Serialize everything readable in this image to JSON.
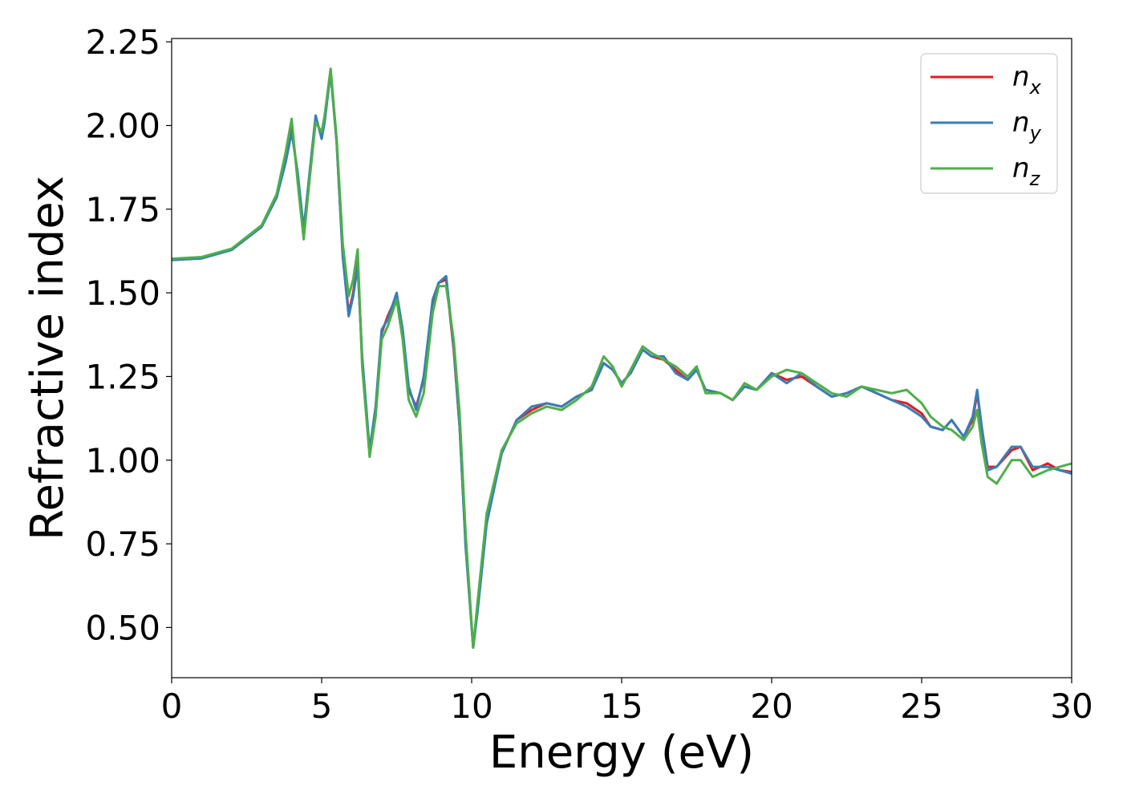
{
  "chart_data": {
    "type": "line",
    "title": "",
    "xlabel": "Energy (eV)",
    "ylabel": "Refractive index",
    "xlim": [
      0,
      30
    ],
    "ylim": [
      0.35,
      2.26
    ],
    "xticks": [
      0,
      5,
      10,
      15,
      20,
      25,
      30
    ],
    "yticks": [
      0.5,
      0.75,
      1.0,
      1.25,
      1.5,
      1.75,
      2.0,
      2.25
    ],
    "xtick_labels": [
      "0",
      "5",
      "10",
      "15",
      "20",
      "25",
      "30"
    ],
    "ytick_labels": [
      "0.50",
      "0.75",
      "1.00",
      "1.25",
      "1.50",
      "1.75",
      "2.00",
      "2.25"
    ],
    "grid": false,
    "legend_position": "top-right",
    "series": [
      {
        "name": "n",
        "subscript": "x",
        "color": "#e41a1c",
        "points": [
          [
            0,
            1.6
          ],
          [
            1,
            1.605
          ],
          [
            2,
            1.63
          ],
          [
            3,
            1.7
          ],
          [
            3.5,
            1.79
          ],
          [
            3.8,
            1.9
          ],
          [
            4.0,
            1.99
          ],
          [
            4.2,
            1.85
          ],
          [
            4.4,
            1.68
          ],
          [
            4.6,
            1.85
          ],
          [
            4.8,
            2.02
          ],
          [
            5.0,
            1.97
          ],
          [
            5.1,
            2.02
          ],
          [
            5.3,
            2.16
          ],
          [
            5.5,
            1.95
          ],
          [
            5.7,
            1.62
          ],
          [
            5.9,
            1.44
          ],
          [
            6.05,
            1.5
          ],
          [
            6.2,
            1.59
          ],
          [
            6.35,
            1.3
          ],
          [
            6.6,
            1.02
          ],
          [
            6.8,
            1.15
          ],
          [
            7.0,
            1.38
          ],
          [
            7.2,
            1.43
          ],
          [
            7.5,
            1.49
          ],
          [
            7.7,
            1.38
          ],
          [
            7.9,
            1.21
          ],
          [
            8.15,
            1.16
          ],
          [
            8.4,
            1.24
          ],
          [
            8.7,
            1.47
          ],
          [
            8.9,
            1.53
          ],
          [
            9.15,
            1.54
          ],
          [
            9.4,
            1.33
          ],
          [
            9.6,
            1.1
          ],
          [
            9.8,
            0.75
          ],
          [
            10.05,
            0.44
          ],
          [
            10.2,
            0.56
          ],
          [
            10.5,
            0.82
          ],
          [
            11,
            1.02
          ],
          [
            11.5,
            1.12
          ],
          [
            12,
            1.15
          ],
          [
            12.5,
            1.17
          ],
          [
            13,
            1.16
          ],
          [
            13.5,
            1.19
          ],
          [
            14,
            1.21
          ],
          [
            14.4,
            1.29
          ],
          [
            14.7,
            1.27
          ],
          [
            15,
            1.23
          ],
          [
            15.3,
            1.26
          ],
          [
            15.7,
            1.33
          ],
          [
            16,
            1.31
          ],
          [
            16.4,
            1.3
          ],
          [
            16.8,
            1.27
          ],
          [
            17.2,
            1.24
          ],
          [
            17.5,
            1.27
          ],
          [
            17.8,
            1.21
          ],
          [
            18.3,
            1.2
          ],
          [
            18.7,
            1.18
          ],
          [
            19.1,
            1.22
          ],
          [
            19.5,
            1.21
          ],
          [
            20,
            1.26
          ],
          [
            20.5,
            1.24
          ],
          [
            21,
            1.25
          ],
          [
            21.5,
            1.22
          ],
          [
            22,
            1.19
          ],
          [
            22.5,
            1.2
          ],
          [
            23,
            1.22
          ],
          [
            23.5,
            1.2
          ],
          [
            24,
            1.18
          ],
          [
            24.5,
            1.17
          ],
          [
            25,
            1.14
          ],
          [
            25.3,
            1.1
          ],
          [
            25.7,
            1.09
          ],
          [
            26,
            1.12
          ],
          [
            26.4,
            1.07
          ],
          [
            26.7,
            1.12
          ],
          [
            26.85,
            1.2
          ],
          [
            27,
            1.1
          ],
          [
            27.2,
            0.98
          ],
          [
            27.5,
            0.98
          ],
          [
            28,
            1.03
          ],
          [
            28.3,
            1.04
          ],
          [
            28.7,
            0.97
          ],
          [
            29.2,
            0.99
          ],
          [
            29.6,
            0.97
          ],
          [
            30,
            0.965
          ]
        ]
      },
      {
        "name": "n",
        "subscript": "y",
        "color": "#377eb8",
        "points": [
          [
            0,
            1.598
          ],
          [
            1,
            1.603
          ],
          [
            2,
            1.628
          ],
          [
            3,
            1.697
          ],
          [
            3.5,
            1.785
          ],
          [
            3.8,
            1.89
          ],
          [
            4.0,
            1.98
          ],
          [
            4.2,
            1.86
          ],
          [
            4.4,
            1.69
          ],
          [
            4.6,
            1.86
          ],
          [
            4.8,
            2.03
          ],
          [
            5.0,
            1.96
          ],
          [
            5.1,
            2.01
          ],
          [
            5.3,
            2.16
          ],
          [
            5.5,
            1.95
          ],
          [
            5.7,
            1.61
          ],
          [
            5.9,
            1.43
          ],
          [
            6.05,
            1.49
          ],
          [
            6.2,
            1.58
          ],
          [
            6.35,
            1.31
          ],
          [
            6.6,
            1.03
          ],
          [
            6.8,
            1.16
          ],
          [
            7.0,
            1.39
          ],
          [
            7.2,
            1.42
          ],
          [
            7.5,
            1.5
          ],
          [
            7.7,
            1.39
          ],
          [
            7.9,
            1.22
          ],
          [
            8.15,
            1.15
          ],
          [
            8.4,
            1.25
          ],
          [
            8.7,
            1.48
          ],
          [
            8.9,
            1.53
          ],
          [
            9.15,
            1.55
          ],
          [
            9.4,
            1.34
          ],
          [
            9.6,
            1.1
          ],
          [
            9.8,
            0.74
          ],
          [
            10.05,
            0.44
          ],
          [
            10.2,
            0.55
          ],
          [
            10.5,
            0.81
          ],
          [
            11,
            1.02
          ],
          [
            11.5,
            1.12
          ],
          [
            12,
            1.16
          ],
          [
            12.5,
            1.17
          ],
          [
            13,
            1.16
          ],
          [
            13.5,
            1.19
          ],
          [
            14,
            1.21
          ],
          [
            14.4,
            1.29
          ],
          [
            14.7,
            1.27
          ],
          [
            15,
            1.23
          ],
          [
            15.3,
            1.26
          ],
          [
            15.7,
            1.33
          ],
          [
            16,
            1.31
          ],
          [
            16.4,
            1.31
          ],
          [
            16.8,
            1.26
          ],
          [
            17.2,
            1.24
          ],
          [
            17.5,
            1.27
          ],
          [
            17.8,
            1.21
          ],
          [
            18.3,
            1.2
          ],
          [
            18.7,
            1.18
          ],
          [
            19.1,
            1.22
          ],
          [
            19.5,
            1.21
          ],
          [
            20,
            1.26
          ],
          [
            20.5,
            1.23
          ],
          [
            21,
            1.26
          ],
          [
            21.5,
            1.22
          ],
          [
            22,
            1.19
          ],
          [
            22.5,
            1.2
          ],
          [
            23,
            1.22
          ],
          [
            23.5,
            1.2
          ],
          [
            24,
            1.18
          ],
          [
            24.5,
            1.16
          ],
          [
            25,
            1.13
          ],
          [
            25.3,
            1.1
          ],
          [
            25.7,
            1.09
          ],
          [
            26,
            1.12
          ],
          [
            26.4,
            1.07
          ],
          [
            26.7,
            1.13
          ],
          [
            26.85,
            1.21
          ],
          [
            27,
            1.1
          ],
          [
            27.2,
            0.97
          ],
          [
            27.5,
            0.98
          ],
          [
            28,
            1.04
          ],
          [
            28.3,
            1.04
          ],
          [
            28.7,
            0.98
          ],
          [
            29.2,
            0.98
          ],
          [
            29.6,
            0.97
          ],
          [
            30,
            0.96
          ]
        ]
      },
      {
        "name": "n",
        "subscript": "z",
        "color": "#4daf4a",
        "points": [
          [
            0,
            1.602
          ],
          [
            1,
            1.607
          ],
          [
            2,
            1.632
          ],
          [
            3,
            1.702
          ],
          [
            3.5,
            1.795
          ],
          [
            3.8,
            1.92
          ],
          [
            4.0,
            2.02
          ],
          [
            4.2,
            1.83
          ],
          [
            4.4,
            1.66
          ],
          [
            4.6,
            1.84
          ],
          [
            4.8,
            2.01
          ],
          [
            5.0,
            1.98
          ],
          [
            5.1,
            2.03
          ],
          [
            5.3,
            2.17
          ],
          [
            5.5,
            1.96
          ],
          [
            5.7,
            1.65
          ],
          [
            5.9,
            1.49
          ],
          [
            6.05,
            1.54
          ],
          [
            6.2,
            1.63
          ],
          [
            6.35,
            1.28
          ],
          [
            6.6,
            1.01
          ],
          [
            6.8,
            1.13
          ],
          [
            7.0,
            1.36
          ],
          [
            7.2,
            1.4
          ],
          [
            7.5,
            1.48
          ],
          [
            7.7,
            1.36
          ],
          [
            7.9,
            1.18
          ],
          [
            8.15,
            1.13
          ],
          [
            8.4,
            1.2
          ],
          [
            8.7,
            1.44
          ],
          [
            8.9,
            1.52
          ],
          [
            9.15,
            1.52
          ],
          [
            9.4,
            1.36
          ],
          [
            9.6,
            1.14
          ],
          [
            9.8,
            0.78
          ],
          [
            10.05,
            0.44
          ],
          [
            10.2,
            0.58
          ],
          [
            10.5,
            0.84
          ],
          [
            11,
            1.03
          ],
          [
            11.5,
            1.11
          ],
          [
            12,
            1.14
          ],
          [
            12.5,
            1.16
          ],
          [
            13,
            1.15
          ],
          [
            13.5,
            1.18
          ],
          [
            14,
            1.22
          ],
          [
            14.4,
            1.31
          ],
          [
            14.7,
            1.28
          ],
          [
            15,
            1.22
          ],
          [
            15.3,
            1.27
          ],
          [
            15.7,
            1.34
          ],
          [
            16,
            1.32
          ],
          [
            16.4,
            1.3
          ],
          [
            16.8,
            1.28
          ],
          [
            17.2,
            1.25
          ],
          [
            17.5,
            1.28
          ],
          [
            17.8,
            1.2
          ],
          [
            18.3,
            1.2
          ],
          [
            18.7,
            1.18
          ],
          [
            19.1,
            1.23
          ],
          [
            19.5,
            1.21
          ],
          [
            20,
            1.25
          ],
          [
            20.5,
            1.27
          ],
          [
            21,
            1.26
          ],
          [
            21.5,
            1.23
          ],
          [
            22,
            1.2
          ],
          [
            22.5,
            1.19
          ],
          [
            23,
            1.22
          ],
          [
            23.5,
            1.21
          ],
          [
            24,
            1.2
          ],
          [
            24.5,
            1.21
          ],
          [
            25,
            1.17
          ],
          [
            25.3,
            1.13
          ],
          [
            25.7,
            1.1
          ],
          [
            26,
            1.09
          ],
          [
            26.4,
            1.06
          ],
          [
            26.7,
            1.1
          ],
          [
            26.85,
            1.15
          ],
          [
            27,
            1.05
          ],
          [
            27.2,
            0.95
          ],
          [
            27.5,
            0.93
          ],
          [
            28,
            1.0
          ],
          [
            28.3,
            1.0
          ],
          [
            28.7,
            0.95
          ],
          [
            29.2,
            0.97
          ],
          [
            29.6,
            0.98
          ],
          [
            30,
            0.99
          ]
        ]
      }
    ]
  }
}
